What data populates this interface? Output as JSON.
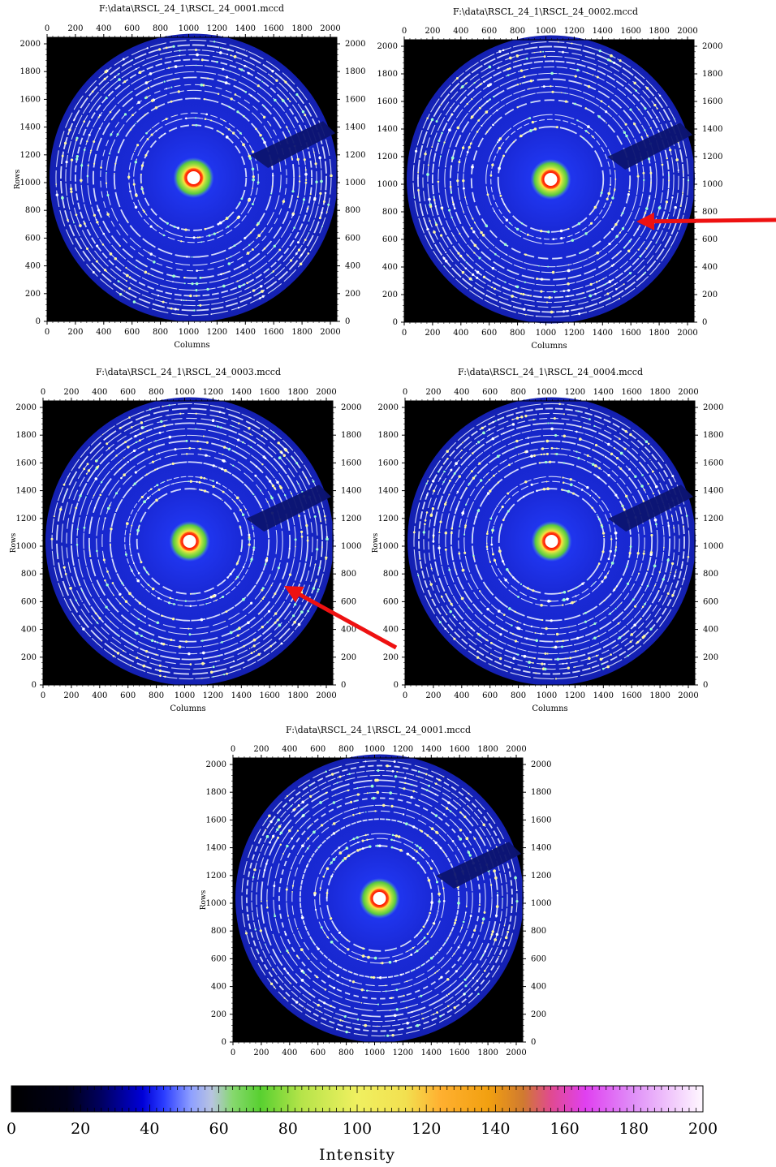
{
  "panels": [
    {
      "title": "F:\\data\\RSCL_24_1\\RSCL_24_0001.mccd",
      "xlabel": "Columns",
      "ylabel": "Rows"
    },
    {
      "title": "F:\\data\\RSCL_24_1\\RSCL_24_0002.mccd",
      "xlabel": "Columns",
      "ylabel": ""
    },
    {
      "title": "F:\\data\\RSCL_24_1\\RSCL_24_0003.mccd",
      "xlabel": "Columns",
      "ylabel": "Rows"
    },
    {
      "title": "F:\\data\\RSCL_24_1\\RSCL_24_0004.mccd",
      "xlabel": "Columns",
      "ylabel": "Rows"
    },
    {
      "title": "F:\\data\\RSCL_24_1\\RSCL_24_0001.mccd",
      "xlabel": "",
      "ylabel": "Rows"
    }
  ],
  "ticks": [
    "0",
    "200",
    "400",
    "600",
    "800",
    "1000",
    "1200",
    "1400",
    "1600",
    "1800",
    "2000"
  ],
  "colorbar": {
    "title": "Intensity",
    "labels": [
      "0",
      "20",
      "40",
      "60",
      "80",
      "100",
      "120",
      "140",
      "160",
      "180",
      "200"
    ]
  },
  "colors": {
    "arrow": "#ee1111",
    "background": "#000000",
    "ring_blue": "#1f2fd6"
  }
}
